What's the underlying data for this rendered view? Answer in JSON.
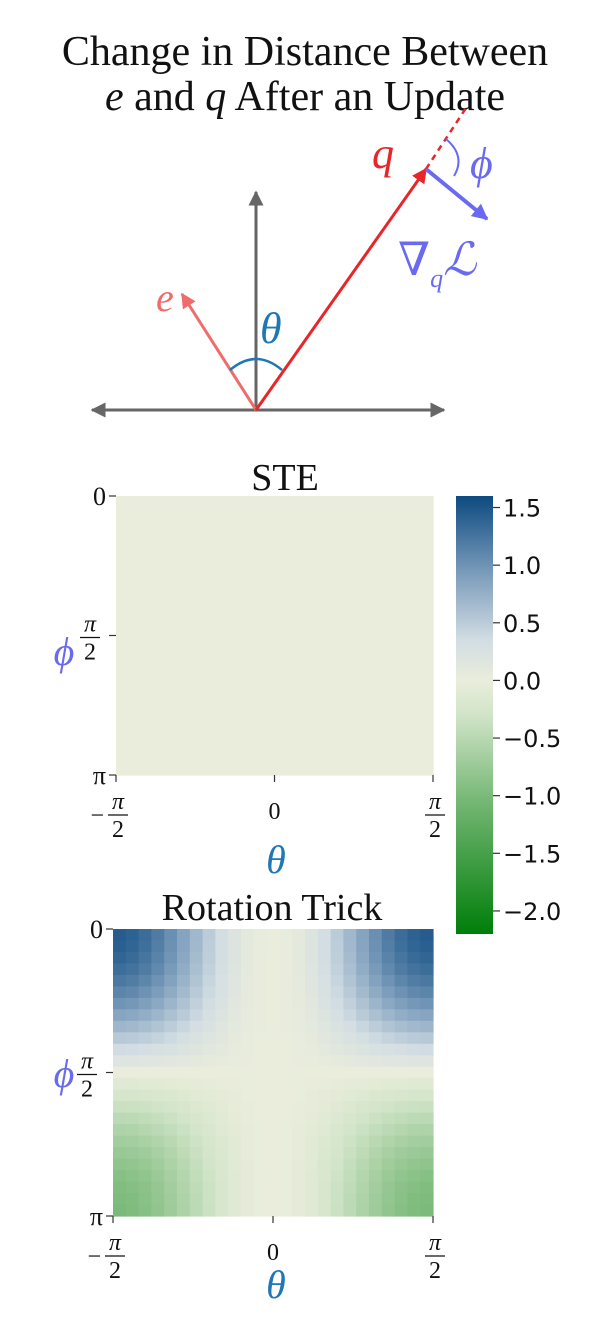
{
  "title": {
    "line1": "Change in Distance Between",
    "line2_var1": "e",
    "line2_mid": " and ",
    "line2_var2": "q",
    "line2_end": " After an Update"
  },
  "diagram": {
    "e_label": "e",
    "q_label": "q",
    "theta_label": "θ",
    "phi_label": "ϕ",
    "grad_symbol": "∇",
    "grad_subscript": "q",
    "grad_loss": "ℒ",
    "colors": {
      "axis": "#666666",
      "e_vector": "#f06b6b",
      "q_vector": "#e8262a",
      "gradient": "#6a6af0",
      "theta_arc": "#1f77b4"
    }
  },
  "chart_data": [
    {
      "type": "heatmap",
      "title": "STE",
      "xlabel": "θ",
      "ylabel": "ϕ",
      "x_range": [
        -1.5708,
        1.5708
      ],
      "y_range": [
        0,
        3.1416
      ],
      "x_ticks": [
        {
          "value": -1.5708,
          "sign": "−",
          "num": "π",
          "den": "2"
        },
        {
          "value": 0,
          "sign": "",
          "num": "0",
          "den": ""
        },
        {
          "value": 1.5708,
          "sign": "",
          "num": "π",
          "den": "2"
        }
      ],
      "y_ticks": [
        {
          "value": 0,
          "num": "0",
          "den": ""
        },
        {
          "value": 1.5708,
          "num": "π",
          "den": "2"
        },
        {
          "value": 3.1416,
          "num": "π",
          "den": ""
        }
      ],
      "grid": [
        25,
        25
      ],
      "formula": "constant",
      "values": 0
    },
    {
      "type": "heatmap",
      "title": "Rotation Trick",
      "xlabel": "θ",
      "ylabel": "ϕ",
      "x_range": [
        -1.5708,
        1.5708
      ],
      "y_range": [
        0,
        3.1416
      ],
      "x_ticks": [
        {
          "value": -1.5708,
          "sign": "−",
          "num": "π",
          "den": "2"
        },
        {
          "value": 0,
          "sign": "",
          "num": "0",
          "den": ""
        },
        {
          "value": 1.5708,
          "sign": "",
          "num": "π",
          "den": "2"
        }
      ],
      "y_ticks": [
        {
          "value": 0,
          "num": "0",
          "den": ""
        },
        {
          "value": 1.5708,
          "num": "π",
          "den": "2"
        },
        {
          "value": 3.1416,
          "num": "π",
          "den": ""
        }
      ],
      "grid": [
        25,
        25
      ],
      "formula": "approx 1.6*cos(phi)*sin(theta)^2, with stronger negative values near phi = pi",
      "corner_values": {
        "top": 1.45,
        "bottom": -1.0
      }
    }
  ],
  "colorbar": {
    "min": -2.2,
    "max": 1.6,
    "ticks": [
      "1.5",
      "1.0",
      "0.5",
      "0.0",
      "−0.5",
      "−1.0",
      "−1.5",
      "−2.0"
    ],
    "tick_values": [
      1.5,
      1.0,
      0.5,
      0.0,
      -0.5,
      -1.0,
      -1.5,
      -2.0
    ],
    "colormap": [
      {
        "v": -2.2,
        "color": "#007e0a"
      },
      {
        "v": -1.1,
        "color": "#6fb46f"
      },
      {
        "v": -0.3,
        "color": "#d1e4c8"
      },
      {
        "v": 0.0,
        "color": "#eaeddc"
      },
      {
        "v": 0.35,
        "color": "#d2dde3"
      },
      {
        "v": 0.9,
        "color": "#7f9fbd"
      },
      {
        "v": 1.6,
        "color": "#0c4a80"
      }
    ]
  }
}
